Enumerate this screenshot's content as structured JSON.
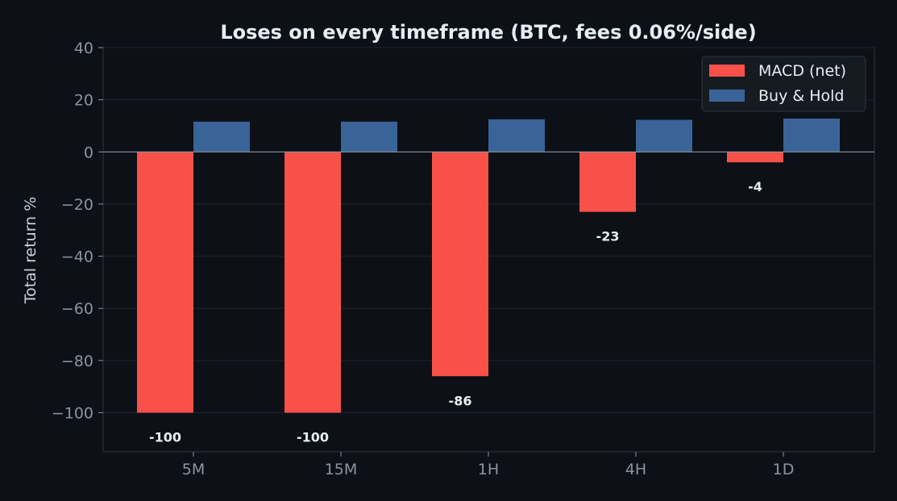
{
  "chart_data": {
    "type": "bar",
    "title": "Loses on every timeframe (BTC, fees 0.06%/side)",
    "xlabel": "",
    "ylabel": "Total return %",
    "categories": [
      "5M",
      "15M",
      "1H",
      "4H",
      "1D"
    ],
    "series": [
      {
        "name": "MACD (net)",
        "color": "#f85149",
        "values": [
          -100,
          -100,
          -86,
          -23,
          -4
        ],
        "labels": [
          "-100",
          "-100",
          "-86",
          "-23",
          "-4"
        ]
      },
      {
        "name": "Buy & Hold",
        "color": "#3a6397",
        "values": [
          11.6,
          11.6,
          12.5,
          12.3,
          12.8
        ]
      }
    ],
    "ylim": [
      -115,
      40
    ],
    "yticks": [
      40,
      20,
      0,
      -20,
      -40,
      -60,
      -80,
      -100
    ],
    "ytick_labels": [
      "40",
      "20",
      "0",
      "−20",
      "−40",
      "−60",
      "−80",
      "−100"
    ],
    "grid": true,
    "legend_position": "top-right"
  }
}
